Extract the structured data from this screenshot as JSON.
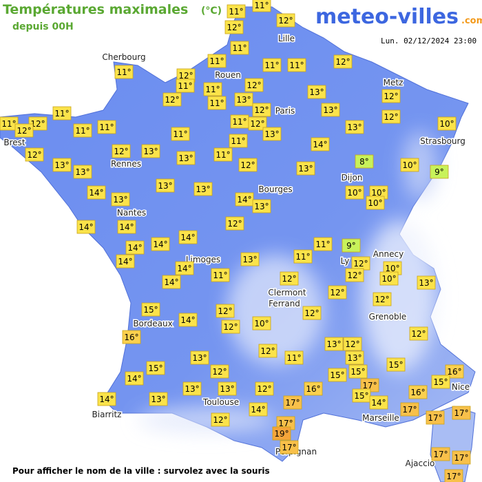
{
  "header": {
    "title": "Températures maximales",
    "unit": "(°C)",
    "subtitle": "depuis 00H",
    "logo": "meteo-villes",
    "logo_suffix": ".com",
    "timestamp": "Lun. 02/12/2024 23:00"
  },
  "cities": [
    "Cherbourg",
    "Rouen",
    "Lille",
    "Metz",
    "Paris",
    "Brest",
    "Rennes",
    "Strasbourg",
    "Dijon",
    "Bourges",
    "Nantes",
    "Limoges",
    "Annecy",
    "Ly",
    "Clermont",
    "Ferrand",
    "Grenoble",
    "Bordeaux",
    "Nice",
    "Toulouse",
    "Marseille",
    "Biarritz",
    "Perpignan",
    "Ajaccio"
  ],
  "temperatures": [
    {
      "value": 11,
      "label": "11°"
    },
    {
      "value": 11,
      "label": "11°"
    },
    {
      "value": 12,
      "label": "12°"
    },
    {
      "value": 12,
      "label": "12°"
    },
    {
      "value": 11,
      "label": "11°"
    },
    {
      "value": 11,
      "label": "11°"
    },
    {
      "value": 11,
      "label": "11°"
    },
    {
      "value": 11,
      "label": "11°"
    },
    {
      "value": 11,
      "label": "11°"
    },
    {
      "value": 12,
      "label": "12°"
    },
    {
      "value": 12,
      "label": "12°"
    },
    {
      "value": 11,
      "label": "11°"
    },
    {
      "value": 11,
      "label": "11°"
    },
    {
      "value": 12,
      "label": "12°"
    },
    {
      "value": 13,
      "label": "13°"
    },
    {
      "value": 12,
      "label": "12°"
    },
    {
      "value": 12,
      "label": "12°"
    },
    {
      "value": 11,
      "label": "11°"
    },
    {
      "value": 13,
      "label": "13°"
    },
    {
      "value": 12,
      "label": "12°"
    },
    {
      "value": 13,
      "label": "13°"
    },
    {
      "value": 12,
      "label": "12°"
    },
    {
      "value": 11,
      "label": "11°"
    },
    {
      "value": 11,
      "label": "11°"
    },
    {
      "value": 12,
      "label": "12°"
    },
    {
      "value": 12,
      "label": "12°"
    },
    {
      "value": 11,
      "label": "11°"
    },
    {
      "value": 11,
      "label": "11°"
    },
    {
      "value": 11,
      "label": "11°"
    },
    {
      "value": 12,
      "label": "12°"
    },
    {
      "value": 13,
      "label": "13°"
    },
    {
      "value": 10,
      "label": "10°"
    },
    {
      "value": 11,
      "label": "11°"
    },
    {
      "value": 13,
      "label": "13°"
    },
    {
      "value": 11,
      "label": "11°"
    },
    {
      "value": 14,
      "label": "14°"
    },
    {
      "value": 12,
      "label": "12°"
    },
    {
      "value": 12,
      "label": "12°"
    },
    {
      "value": 13,
      "label": "13°"
    },
    {
      "value": 13,
      "label": "13°"
    },
    {
      "value": 11,
      "label": "11°"
    },
    {
      "value": 13,
      "label": "13°"
    },
    {
      "value": 12,
      "label": "12°"
    },
    {
      "value": 13,
      "label": "13°"
    },
    {
      "value": 8,
      "label": "8°"
    },
    {
      "value": 10,
      "label": "10°"
    },
    {
      "value": 9,
      "label": "9°"
    },
    {
      "value": 13,
      "label": "13°"
    },
    {
      "value": 13,
      "label": "13°"
    },
    {
      "value": 13,
      "label": "13°"
    },
    {
      "value": 14,
      "label": "14°"
    },
    {
      "value": 13,
      "label": "13°"
    },
    {
      "value": 14,
      "label": "14°"
    },
    {
      "value": 13,
      "label": "13°"
    },
    {
      "value": 10,
      "label": "10°"
    },
    {
      "value": 10,
      "label": "10°"
    },
    {
      "value": 10,
      "label": "10°"
    },
    {
      "value": 14,
      "label": "14°"
    },
    {
      "value": 14,
      "label": "14°"
    },
    {
      "value": 12,
      "label": "12°"
    },
    {
      "value": 14,
      "label": "14°"
    },
    {
      "value": 14,
      "label": "14°"
    },
    {
      "value": 11,
      "label": "11°"
    },
    {
      "value": 9,
      "label": "9°"
    },
    {
      "value": 14,
      "label": "14°"
    },
    {
      "value": 14,
      "label": "14°"
    },
    {
      "value": 13,
      "label": "13°"
    },
    {
      "value": 11,
      "label": "11°"
    },
    {
      "value": 12,
      "label": "12°"
    },
    {
      "value": 10,
      "label": "10°"
    },
    {
      "value": 14,
      "label": "14°"
    },
    {
      "value": 11,
      "label": "11°"
    },
    {
      "value": 12,
      "label": "12°"
    },
    {
      "value": 10,
      "label": "10°"
    },
    {
      "value": 14,
      "label": "14°"
    },
    {
      "value": 12,
      "label": "12°"
    },
    {
      "value": 13,
      "label": "13°"
    },
    {
      "value": 12,
      "label": "12°"
    },
    {
      "value": 12,
      "label": "12°"
    },
    {
      "value": 15,
      "label": "15°"
    },
    {
      "value": 12,
      "label": "12°"
    },
    {
      "value": 12,
      "label": "12°"
    },
    {
      "value": 10,
      "label": "10°"
    },
    {
      "value": 14,
      "label": "14°"
    },
    {
      "value": 12,
      "label": "12°"
    },
    {
      "value": 16,
      "label": "16°"
    },
    {
      "value": 12,
      "label": "12°"
    },
    {
      "value": 13,
      "label": "13°"
    },
    {
      "value": 12,
      "label": "12°"
    },
    {
      "value": 12,
      "label": "12°"
    },
    {
      "value": 11,
      "label": "11°"
    },
    {
      "value": 13,
      "label": "13°"
    },
    {
      "value": 13,
      "label": "13°"
    },
    {
      "value": 15,
      "label": "15°"
    },
    {
      "value": 15,
      "label": "15°"
    },
    {
      "value": 12,
      "label": "12°"
    },
    {
      "value": 16,
      "label": "16°"
    },
    {
      "value": 15,
      "label": "15°"
    },
    {
      "value": 15,
      "label": "15°"
    },
    {
      "value": 15,
      "label": "15°"
    },
    {
      "value": 14,
      "label": "14°"
    },
    {
      "value": 13,
      "label": "13°"
    },
    {
      "value": 13,
      "label": "13°"
    },
    {
      "value": 12,
      "label": "12°"
    },
    {
      "value": 16,
      "label": "16°"
    },
    {
      "value": 17,
      "label": "17°"
    },
    {
      "value": 15,
      "label": "15°"
    },
    {
      "value": 16,
      "label": "16°"
    },
    {
      "value": 14,
      "label": "14°"
    },
    {
      "value": 13,
      "label": "13°"
    },
    {
      "value": 17,
      "label": "17°"
    },
    {
      "value": 14,
      "label": "14°"
    },
    {
      "value": 14,
      "label": "14°"
    },
    {
      "value": 17,
      "label": "17°"
    },
    {
      "value": 12,
      "label": "12°"
    },
    {
      "value": 17,
      "label": "17°"
    },
    {
      "value": 17,
      "label": "17°"
    },
    {
      "value": 17,
      "label": "17°"
    },
    {
      "value": 19,
      "label": "19°"
    },
    {
      "value": 17,
      "label": "17°"
    },
    {
      "value": 17,
      "label": "17°"
    },
    {
      "value": 17,
      "label": "17°"
    },
    {
      "value": 17,
      "label": "17°"
    }
  ],
  "footer": "Pour afficher le nom de la ville : survolez avec la souris"
}
